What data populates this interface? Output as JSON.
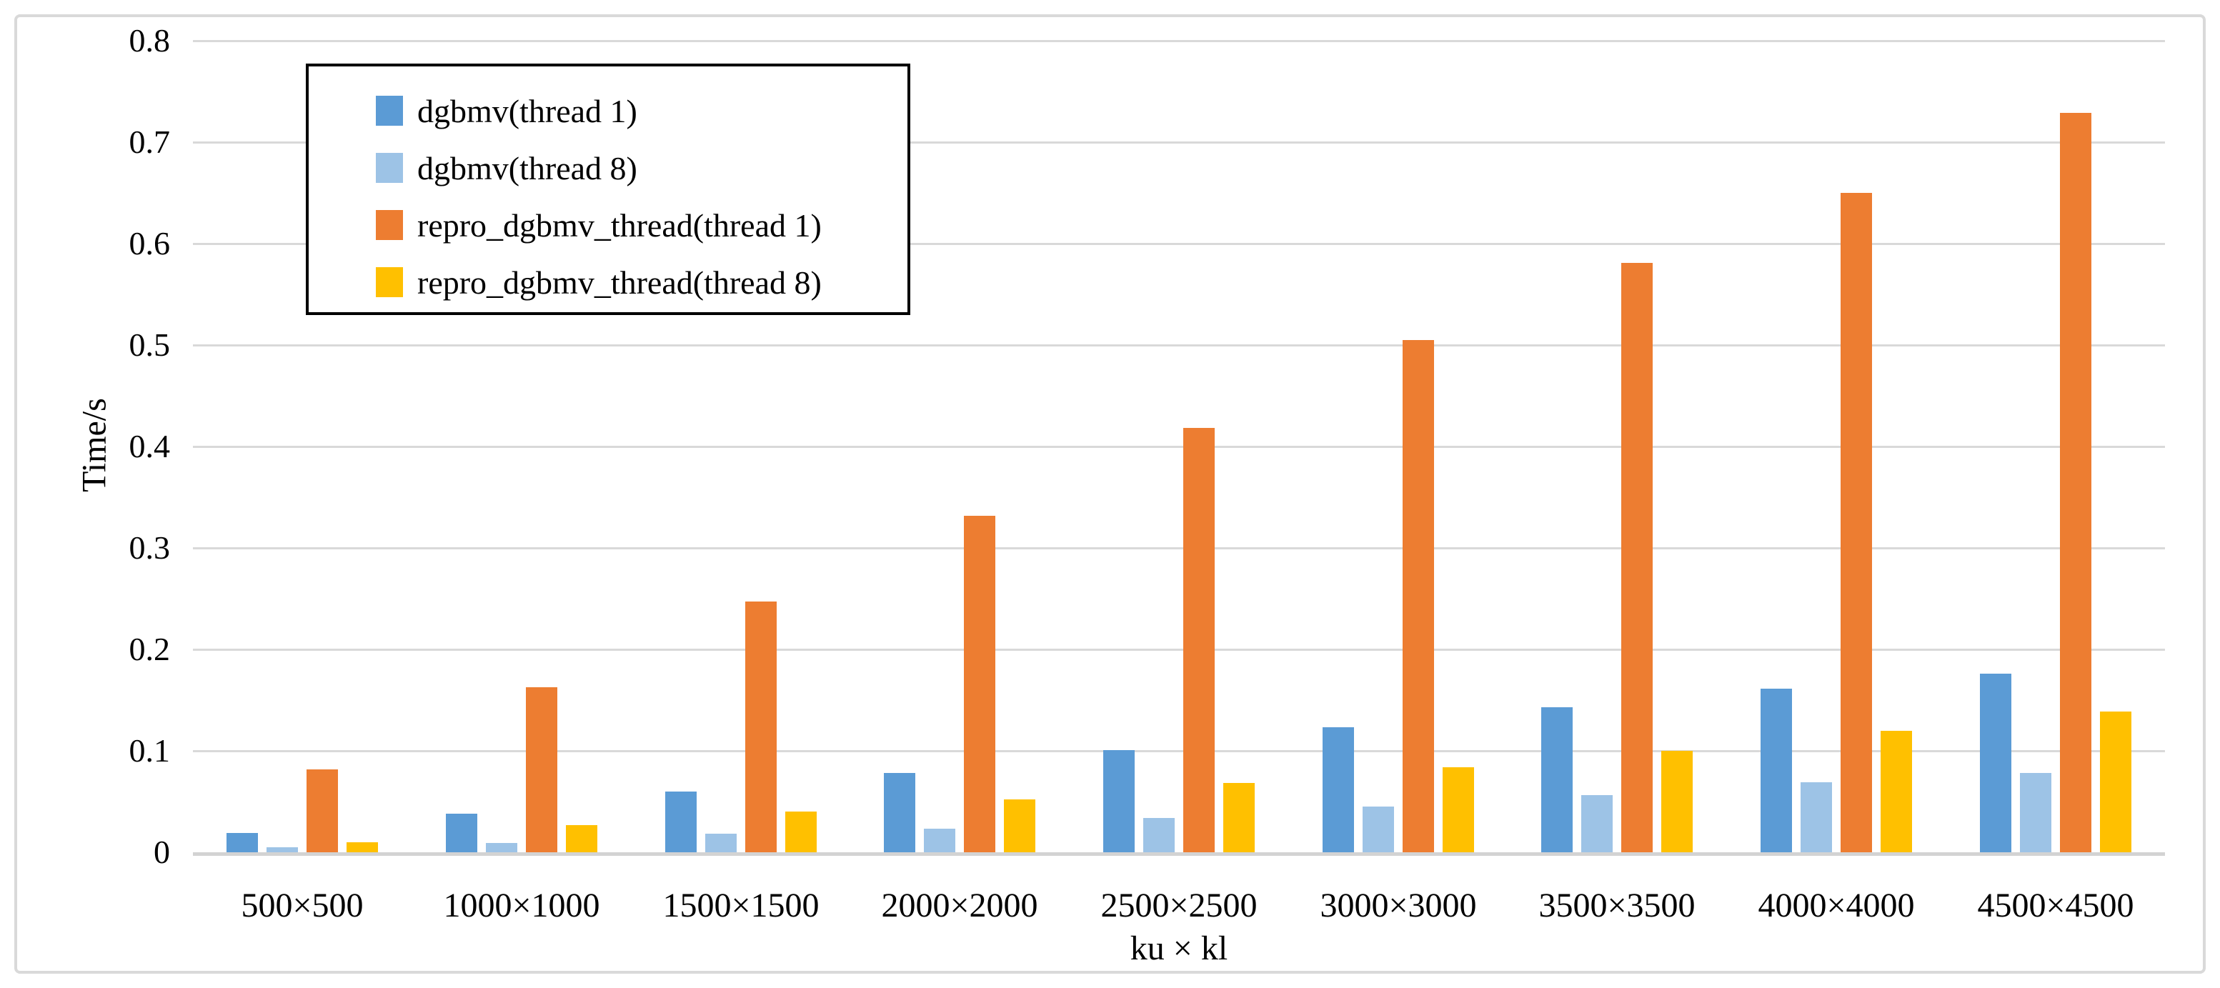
{
  "chart_data": {
    "type": "bar",
    "title": "",
    "xlabel": "ku × kl",
    "ylabel": "Time/s",
    "ylim": [
      0,
      0.8
    ],
    "ytick_step": 0.1,
    "ytick_labels": [
      "0.8",
      "0.7",
      "0.6",
      "0.5",
      "0.4",
      "0.3",
      "0.2",
      "0.1",
      "0"
    ],
    "grid": true,
    "legend_position": "top-left",
    "categories": [
      "500×500",
      "1000×1000",
      "1500×1500",
      "2000×2000",
      "2500×2500",
      "3000×3000",
      "3500×3500",
      "4000×4000",
      "4500×4500"
    ],
    "series": [
      {
        "name": "dgbmv(thread 1)",
        "color": "#5B9BD5",
        "values": [
          0.019,
          0.038,
          0.06,
          0.078,
          0.101,
          0.123,
          0.143,
          0.161,
          0.176
        ]
      },
      {
        "name": "dgbmv(thread 8)",
        "color": "#9DC3E6",
        "values": [
          0.005,
          0.009,
          0.018,
          0.023,
          0.034,
          0.045,
          0.056,
          0.069,
          0.078
        ]
      },
      {
        "name": "repro_dgbmv_thread(thread 1)",
        "color": "#ED7D31",
        "values": [
          0.082,
          0.163,
          0.247,
          0.332,
          0.418,
          0.505,
          0.581,
          0.65,
          0.729
        ]
      },
      {
        "name": "repro_dgbmv_thread(thread 8)",
        "color": "#FFC000",
        "values": [
          0.01,
          0.027,
          0.04,
          0.052,
          0.068,
          0.084,
          0.1,
          0.12,
          0.139
        ]
      }
    ]
  },
  "colors": {
    "background": "#FFFFFF",
    "gridline": "#D9D9D9",
    "axis_line": "#D3D3D3",
    "outer_border": "#D9D9D9",
    "legend_border": "#000000",
    "text": "#000000"
  }
}
